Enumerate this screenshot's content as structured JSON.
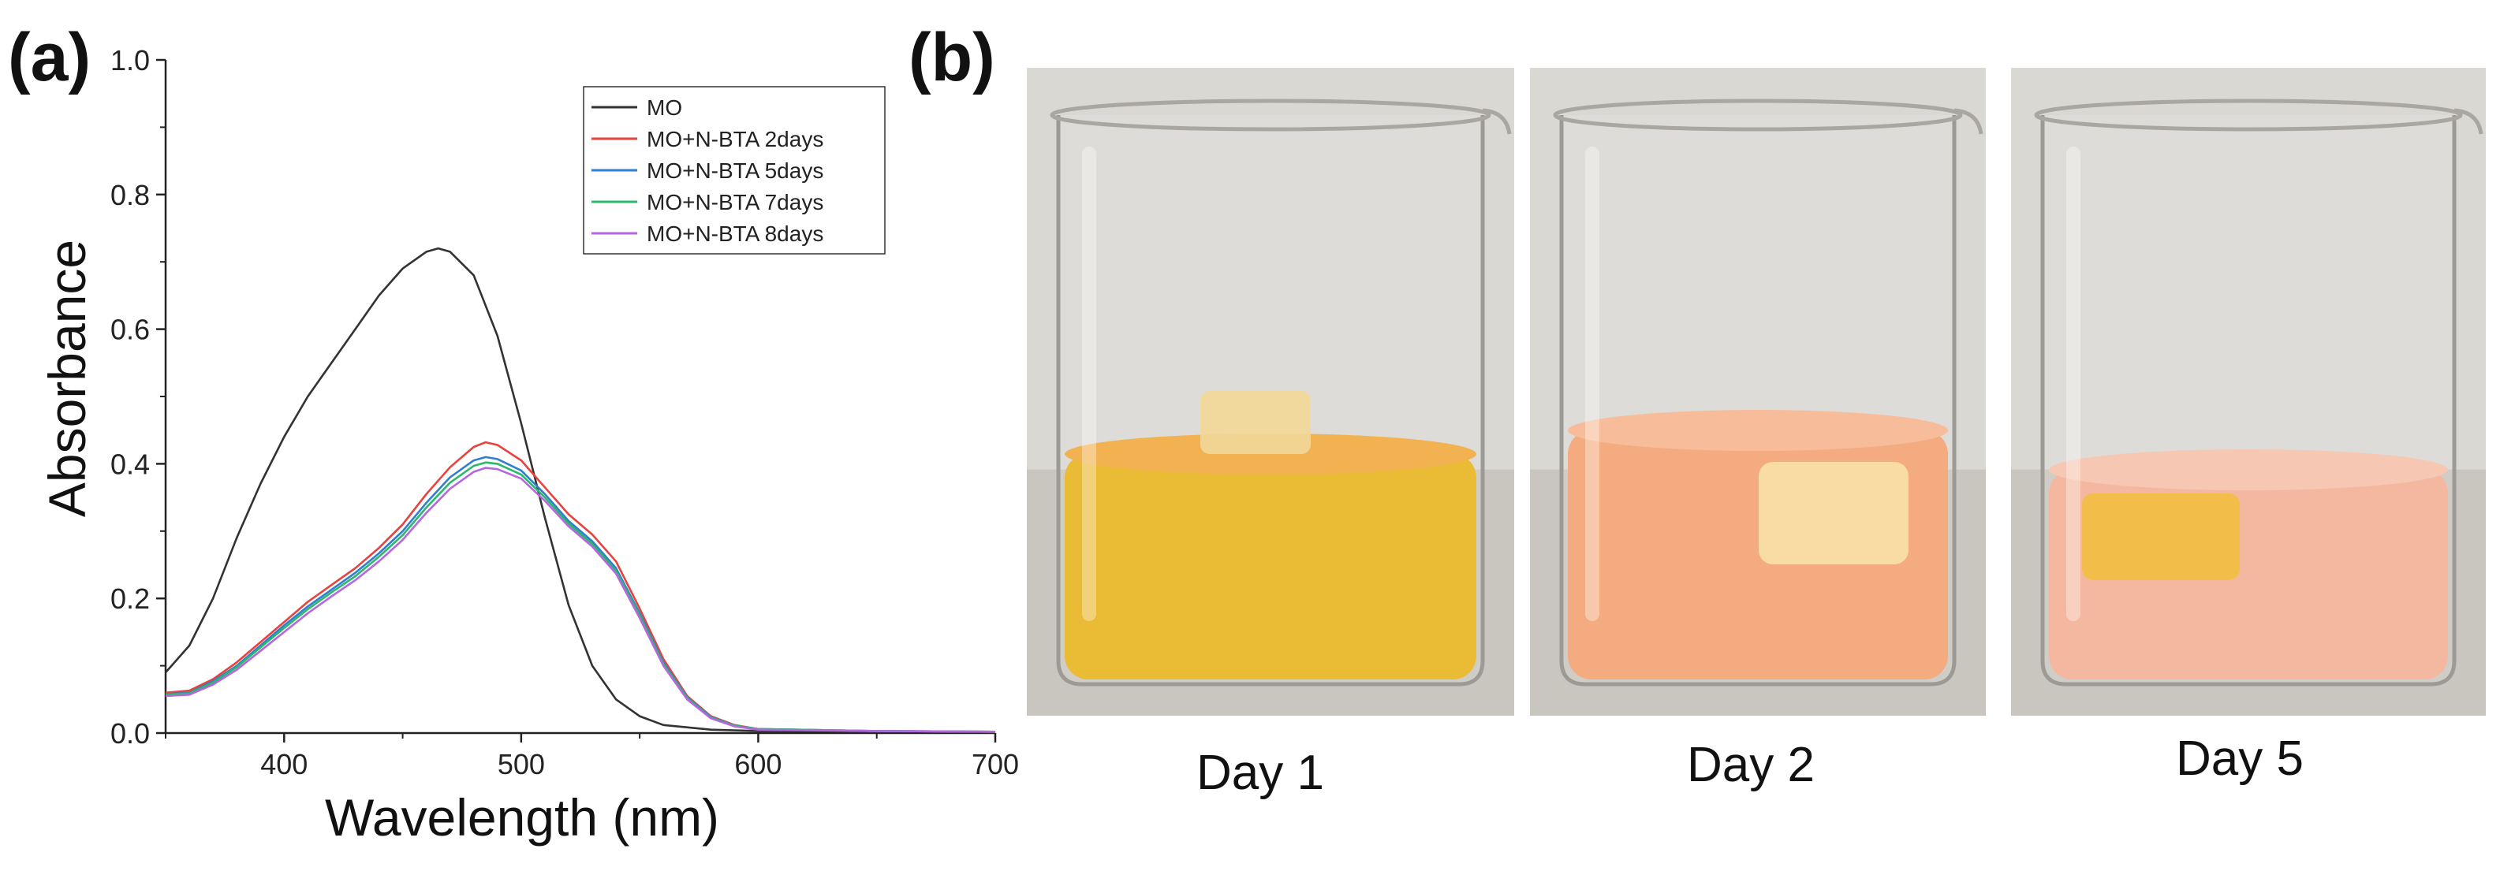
{
  "panel_labels": {
    "a": "(a)",
    "b": "(b)"
  },
  "chart_data": {
    "type": "line",
    "title": "",
    "xlabel": "Wavelength (nm)",
    "ylabel": "Absorbance",
    "xlim": [
      350,
      700
    ],
    "ylim": [
      0,
      1.0
    ],
    "xticks": [
      400,
      500,
      600,
      700
    ],
    "yticks": [
      0.0,
      0.2,
      0.4,
      0.6,
      0.8,
      1.0
    ],
    "xtick_labels": [
      "400",
      "500",
      "600",
      "700"
    ],
    "ytick_labels": [
      "0.0",
      "0.2",
      "0.4",
      "0.6",
      "0.8",
      "1.0"
    ],
    "grid": false,
    "legend_position": "top-right",
    "series": [
      {
        "name": "MO",
        "color": "#333333",
        "points": [
          [
            350,
            0.09
          ],
          [
            360,
            0.13
          ],
          [
            370,
            0.2
          ],
          [
            380,
            0.29
          ],
          [
            390,
            0.37
          ],
          [
            400,
            0.44
          ],
          [
            410,
            0.5
          ],
          [
            420,
            0.55
          ],
          [
            430,
            0.6
          ],
          [
            440,
            0.65
          ],
          [
            450,
            0.69
          ],
          [
            460,
            0.715
          ],
          [
            465,
            0.72
          ],
          [
            470,
            0.715
          ],
          [
            480,
            0.68
          ],
          [
            490,
            0.59
          ],
          [
            500,
            0.46
          ],
          [
            510,
            0.32
          ],
          [
            520,
            0.19
          ],
          [
            530,
            0.1
          ],
          [
            540,
            0.05
          ],
          [
            550,
            0.025
          ],
          [
            560,
            0.012
          ],
          [
            580,
            0.005
          ],
          [
            600,
            0.003
          ],
          [
            650,
            0.002
          ],
          [
            700,
            0.001
          ]
        ]
      },
      {
        "name": "MO+N-BTA 2days",
        "color": "#e8423f",
        "points": [
          [
            350,
            0.06
          ],
          [
            360,
            0.063
          ],
          [
            370,
            0.08
          ],
          [
            380,
            0.105
          ],
          [
            390,
            0.135
          ],
          [
            400,
            0.165
          ],
          [
            410,
            0.195
          ],
          [
            420,
            0.22
          ],
          [
            430,
            0.245
          ],
          [
            440,
            0.275
          ],
          [
            450,
            0.31
          ],
          [
            460,
            0.355
          ],
          [
            470,
            0.395
          ],
          [
            480,
            0.425
          ],
          [
            485,
            0.432
          ],
          [
            490,
            0.428
          ],
          [
            500,
            0.405
          ],
          [
            510,
            0.365
          ],
          [
            520,
            0.325
          ],
          [
            530,
            0.295
          ],
          [
            540,
            0.255
          ],
          [
            550,
            0.185
          ],
          [
            560,
            0.11
          ],
          [
            570,
            0.055
          ],
          [
            580,
            0.025
          ],
          [
            590,
            0.012
          ],
          [
            600,
            0.006
          ],
          [
            650,
            0.003
          ],
          [
            700,
            0.002
          ]
        ]
      },
      {
        "name": "MO+N-BTA 5days",
        "color": "#2f7fd0",
        "points": [
          [
            350,
            0.058
          ],
          [
            360,
            0.06
          ],
          [
            370,
            0.077
          ],
          [
            380,
            0.1
          ],
          [
            390,
            0.13
          ],
          [
            400,
            0.16
          ],
          [
            410,
            0.188
          ],
          [
            420,
            0.213
          ],
          [
            430,
            0.238
          ],
          [
            440,
            0.267
          ],
          [
            450,
            0.3
          ],
          [
            460,
            0.342
          ],
          [
            470,
            0.38
          ],
          [
            480,
            0.405
          ],
          [
            485,
            0.41
          ],
          [
            490,
            0.407
          ],
          [
            500,
            0.39
          ],
          [
            510,
            0.355
          ],
          [
            520,
            0.315
          ],
          [
            530,
            0.285
          ],
          [
            540,
            0.245
          ],
          [
            550,
            0.178
          ],
          [
            560,
            0.105
          ],
          [
            570,
            0.053
          ],
          [
            580,
            0.024
          ],
          [
            590,
            0.011
          ],
          [
            600,
            0.006
          ],
          [
            650,
            0.003
          ],
          [
            700,
            0.002
          ]
        ]
      },
      {
        "name": "MO+N-BTA 7days",
        "color": "#2cb86a",
        "points": [
          [
            350,
            0.057
          ],
          [
            360,
            0.059
          ],
          [
            370,
            0.075
          ],
          [
            380,
            0.098
          ],
          [
            390,
            0.127
          ],
          [
            400,
            0.156
          ],
          [
            410,
            0.184
          ],
          [
            420,
            0.209
          ],
          [
            430,
            0.233
          ],
          [
            440,
            0.262
          ],
          [
            450,
            0.294
          ],
          [
            460,
            0.335
          ],
          [
            470,
            0.372
          ],
          [
            480,
            0.397
          ],
          [
            485,
            0.402
          ],
          [
            490,
            0.4
          ],
          [
            500,
            0.384
          ],
          [
            510,
            0.35
          ],
          [
            520,
            0.311
          ],
          [
            530,
            0.281
          ],
          [
            540,
            0.241
          ],
          [
            550,
            0.175
          ],
          [
            560,
            0.103
          ],
          [
            570,
            0.052
          ],
          [
            580,
            0.023
          ],
          [
            590,
            0.011
          ],
          [
            600,
            0.006
          ],
          [
            650,
            0.003
          ],
          [
            700,
            0.002
          ]
        ]
      },
      {
        "name": "MO+N-BTA 8days",
        "color": "#b566e0",
        "points": [
          [
            350,
            0.055
          ],
          [
            360,
            0.057
          ],
          [
            370,
            0.072
          ],
          [
            380,
            0.094
          ],
          [
            390,
            0.122
          ],
          [
            400,
            0.15
          ],
          [
            410,
            0.178
          ],
          [
            420,
            0.203
          ],
          [
            430,
            0.227
          ],
          [
            440,
            0.255
          ],
          [
            450,
            0.287
          ],
          [
            460,
            0.327
          ],
          [
            470,
            0.363
          ],
          [
            480,
            0.388
          ],
          [
            485,
            0.394
          ],
          [
            490,
            0.392
          ],
          [
            500,
            0.378
          ],
          [
            510,
            0.345
          ],
          [
            520,
            0.307
          ],
          [
            530,
            0.277
          ],
          [
            540,
            0.237
          ],
          [
            550,
            0.171
          ],
          [
            560,
            0.1
          ],
          [
            570,
            0.05
          ],
          [
            580,
            0.022
          ],
          [
            590,
            0.01
          ],
          [
            600,
            0.005
          ],
          [
            650,
            0.003
          ],
          [
            700,
            0.002
          ]
        ]
      }
    ]
  },
  "photos": [
    {
      "caption": "Day 1",
      "liquid_color": "#e8b219",
      "liquid_top_color": "#f2a83a",
      "sample_color": "#f1d28a"
    },
    {
      "caption": "Day 2",
      "liquid_color": "#f3a06e",
      "liquid_top_color": "#f6b48c",
      "sample_color": "#f8dc9a"
    },
    {
      "caption": "Day 5",
      "liquid_color": "#f3ae92",
      "liquid_top_color": "#f5c0a8",
      "sample_color": "#f1b628"
    }
  ]
}
